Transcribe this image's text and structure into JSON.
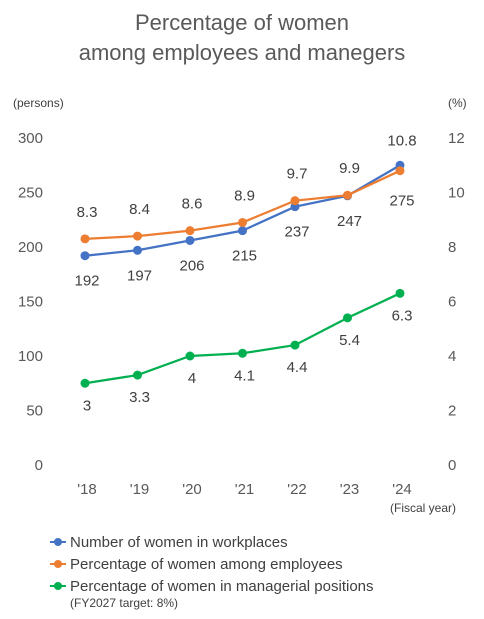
{
  "chart_data": {
    "type": "line",
    "title_line1": "Percentage of women",
    "title_line2": "among employees and manegers",
    "left_unit": "(persons)",
    "right_unit": "(%)",
    "xlabel": "(Fiscal year)",
    "categories": [
      "'18",
      "'19",
      "'20",
      "'21",
      "'22",
      "'23",
      "'24"
    ],
    "left_axis": {
      "min": 0,
      "max": 300,
      "ticks": [
        "0",
        "50",
        "100",
        "150",
        "200",
        "250",
        "300"
      ]
    },
    "right_axis": {
      "min": 0,
      "max": 12,
      "ticks": [
        "0",
        "2",
        "4",
        "6",
        "8",
        "10",
        "12"
      ]
    },
    "grid": false,
    "legend_position": "bottom",
    "series": [
      {
        "name": "Number of women in workplaces",
        "axis": "left",
        "color": "#4472C4",
        "values": [
          192,
          197,
          206,
          215,
          237,
          247,
          275
        ],
        "labels": [
          "192",
          "197",
          "206",
          "215",
          "237",
          "247",
          "275"
        ]
      },
      {
        "name": "Percentage of women among employees",
        "axis": "right",
        "color": "#ED7D31",
        "values": [
          8.3,
          8.4,
          8.6,
          8.9,
          9.7,
          9.9,
          10.8
        ],
        "labels": [
          "8.3",
          "8.4",
          "8.6",
          "8.9",
          "9.7",
          "9.9",
          "10.8"
        ]
      },
      {
        "name": "Percentage of women in managerial positions",
        "axis": "right",
        "color": "#00B050",
        "values": [
          3,
          3.3,
          4,
          4.1,
          4.4,
          5.4,
          6.3
        ],
        "labels": [
          "3",
          "3.3",
          "4",
          "4.1",
          "4.4",
          "5.4",
          "6.3"
        ]
      }
    ],
    "legend_note": "(FY2027 target: 8%)"
  }
}
